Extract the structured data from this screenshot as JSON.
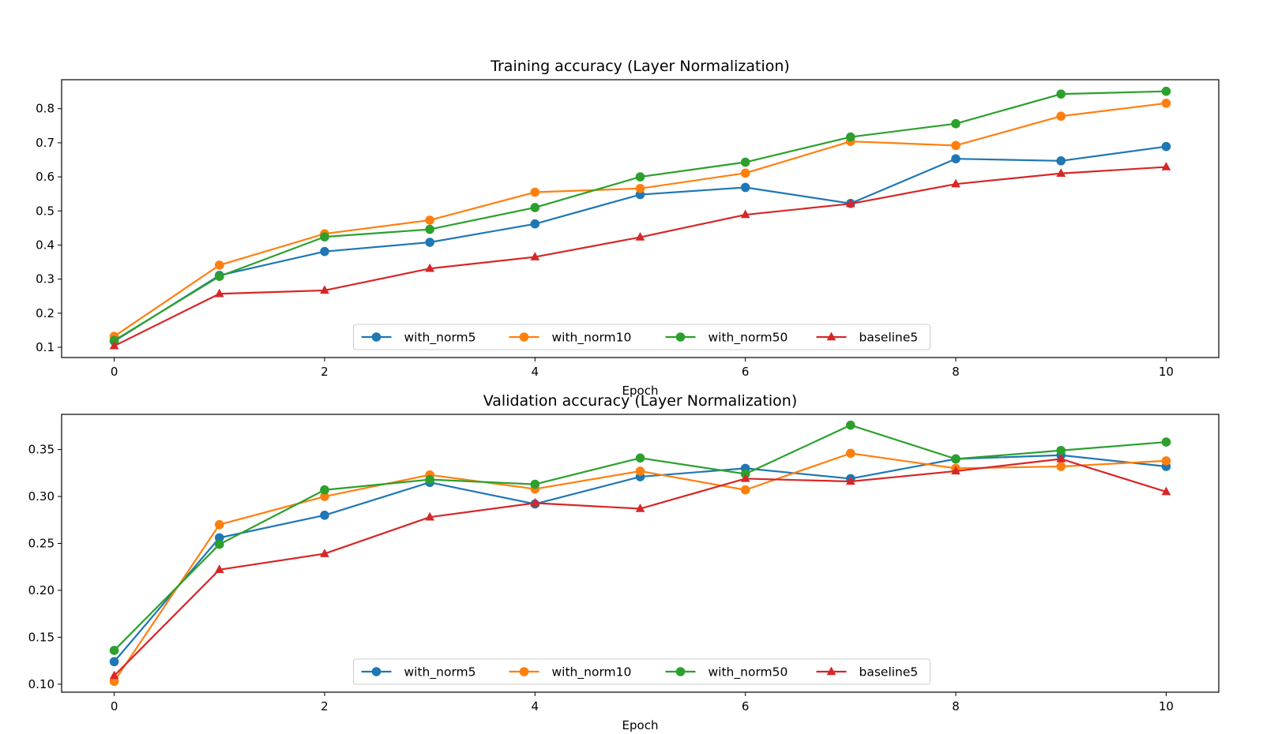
{
  "chart_data": [
    {
      "type": "line",
      "title": "Training accuracy (Layer Normalization)",
      "xlabel": "Epoch",
      "ylabel": "",
      "xlim": [
        -0.5,
        10.5
      ],
      "ylim": [
        0.07,
        0.885
      ],
      "xticks": [
        0,
        2,
        4,
        6,
        8,
        10
      ],
      "yticks": [
        0.1,
        0.2,
        0.3,
        0.4,
        0.5,
        0.6,
        0.7,
        0.8
      ],
      "ytick_labels": [
        "0.1",
        "0.2",
        "0.3",
        "0.4",
        "0.5",
        "0.6",
        "0.7",
        "0.8"
      ],
      "legend": "lower-center",
      "x": [
        0,
        1,
        2,
        3,
        4,
        5,
        6,
        7,
        8,
        9,
        10
      ],
      "series": [
        {
          "name": "with_norm5",
          "color": "#1f77b4",
          "marker": "circle",
          "values": [
            0.118,
            0.311,
            0.381,
            0.408,
            0.462,
            0.548,
            0.569,
            0.522,
            0.653,
            0.647,
            0.689
          ]
        },
        {
          "name": "with_norm10",
          "color": "#ff7f0e",
          "marker": "circle",
          "values": [
            0.132,
            0.341,
            0.433,
            0.473,
            0.555,
            0.566,
            0.611,
            0.704,
            0.692,
            0.778,
            0.816
          ]
        },
        {
          "name": "with_norm50",
          "color": "#2ca02c",
          "marker": "circle",
          "values": [
            0.12,
            0.308,
            0.424,
            0.446,
            0.51,
            0.6,
            0.643,
            0.717,
            0.756,
            0.843,
            0.851
          ]
        },
        {
          "name": "baseline5",
          "color": "#d62728",
          "marker": "triangle",
          "values": [
            0.104,
            0.257,
            0.267,
            0.331,
            0.365,
            0.423,
            0.489,
            0.521,
            0.579,
            0.61,
            0.629
          ]
        }
      ]
    },
    {
      "type": "line",
      "title": "Validation accuracy (Layer Normalization)",
      "xlabel": "Epoch",
      "ylabel": "",
      "xlim": [
        -0.5,
        10.5
      ],
      "ylim": [
        0.0915,
        0.3875
      ],
      "xticks": [
        0,
        2,
        4,
        6,
        8,
        10
      ],
      "yticks": [
        0.1,
        0.15,
        0.2,
        0.25,
        0.3,
        0.35
      ],
      "ytick_labels": [
        "0.10",
        "0.15",
        "0.20",
        "0.25",
        "0.30",
        "0.35"
      ],
      "legend": "lower-center",
      "x": [
        0,
        1,
        2,
        3,
        4,
        5,
        6,
        7,
        8,
        9,
        10
      ],
      "series": [
        {
          "name": "with_norm5",
          "color": "#1f77b4",
          "marker": "circle",
          "values": [
            0.124,
            0.256,
            0.28,
            0.315,
            0.292,
            0.321,
            0.33,
            0.319,
            0.34,
            0.344,
            0.332
          ]
        },
        {
          "name": "with_norm10",
          "color": "#ff7f0e",
          "marker": "circle",
          "values": [
            0.103,
            0.27,
            0.3,
            0.323,
            0.308,
            0.327,
            0.307,
            0.346,
            0.33,
            0.332,
            0.338
          ]
        },
        {
          "name": "with_norm50",
          "color": "#2ca02c",
          "marker": "circle",
          "values": [
            0.136,
            0.249,
            0.307,
            0.318,
            0.313,
            0.341,
            0.324,
            0.376,
            0.34,
            0.349,
            0.358
          ]
        },
        {
          "name": "baseline5",
          "color": "#d62728",
          "marker": "triangle",
          "values": [
            0.109,
            0.222,
            0.239,
            0.278,
            0.293,
            0.287,
            0.319,
            0.316,
            0.327,
            0.34,
            0.305
          ]
        }
      ]
    }
  ]
}
